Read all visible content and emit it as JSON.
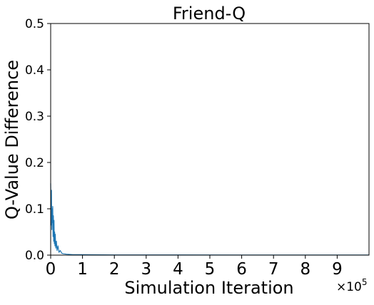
{
  "chart_data": {
    "type": "line",
    "title": "Friend-Q",
    "xlabel": "Simulation Iteration",
    "ylabel": "Q-Value Difference",
    "x_multiplier_label": "×10",
    "x_multiplier_exponent": "5",
    "xlim": [
      0,
      1000000
    ],
    "ylim": [
      0,
      0.5
    ],
    "x_ticks": [
      {
        "value": 0,
        "label": "0"
      },
      {
        "value": 100000,
        "label": "1"
      },
      {
        "value": 200000,
        "label": "2"
      },
      {
        "value": 300000,
        "label": "3"
      },
      {
        "value": 400000,
        "label": "4"
      },
      {
        "value": 500000,
        "label": "5"
      },
      {
        "value": 600000,
        "label": "6"
      },
      {
        "value": 700000,
        "label": "7"
      },
      {
        "value": 800000,
        "label": "8"
      },
      {
        "value": 900000,
        "label": "9"
      }
    ],
    "y_ticks": [
      {
        "value": 0.0,
        "label": "0.0"
      },
      {
        "value": 0.1,
        "label": "0.1"
      },
      {
        "value": 0.2,
        "label": "0.2"
      },
      {
        "value": 0.3,
        "label": "0.3"
      },
      {
        "value": 0.4,
        "label": "0.4"
      },
      {
        "value": 0.5,
        "label": "0.5"
      }
    ],
    "grid": false,
    "legend": "none",
    "series": [
      {
        "color": "#1f77b4",
        "x": [
          0,
          1500,
          2500,
          3500,
          4500,
          5500,
          6500,
          7500,
          8500,
          9500,
          10500,
          11500,
          12500,
          13500,
          14500,
          16000,
          18000,
          20000,
          23000,
          26000,
          30000,
          35000,
          40000,
          50000,
          70000,
          100000,
          200000,
          400000,
          600000,
          800000,
          1000000
        ],
        "y": [
          0.155,
          0.065,
          0.14,
          0.055,
          0.1,
          0.07,
          0.105,
          0.04,
          0.085,
          0.03,
          0.075,
          0.025,
          0.05,
          0.02,
          0.045,
          0.015,
          0.03,
          0.01,
          0.02,
          0.006,
          0.01,
          0.004,
          0.003,
          0.002,
          0.001,
          0.001,
          0.0005,
          0.0005,
          0.0003,
          0.0003,
          0.0002
        ]
      }
    ]
  }
}
